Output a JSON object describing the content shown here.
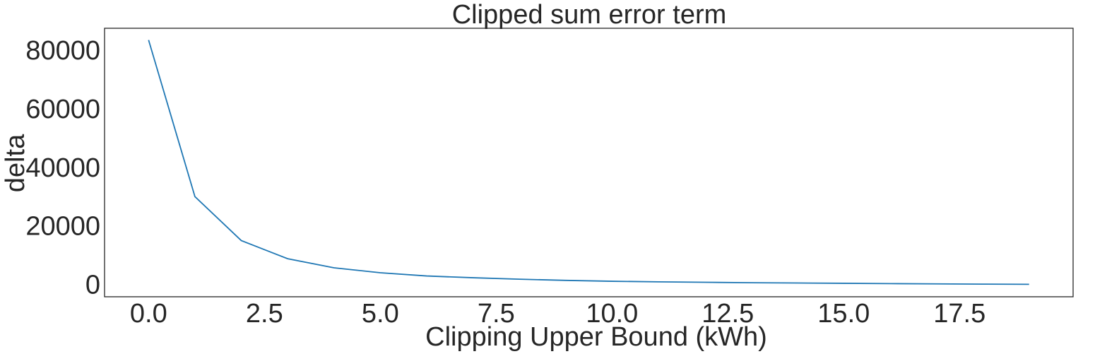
{
  "chart_data": {
    "type": "line",
    "title": "Clipped sum error term",
    "xlabel": "Clipping Upper Bound (kWh)",
    "ylabel": "delta",
    "xlim": [
      -0.95,
      19.95
    ],
    "ylim": [
      -4200,
      87500
    ],
    "grid": false,
    "x_ticks": [
      0.0,
      2.5,
      5.0,
      7.5,
      10.0,
      12.5,
      15.0,
      17.5
    ],
    "x_tick_labels": [
      "0.0",
      "2.5",
      "5.0",
      "7.5",
      "10.0",
      "12.5",
      "15.0",
      "17.5"
    ],
    "y_ticks": [
      0,
      20000,
      40000,
      60000,
      80000
    ],
    "y_tick_labels": [
      "0",
      "20000",
      "40000",
      "60000",
      "80000"
    ],
    "series": [
      {
        "color": "#1f77b4",
        "x": [
          0,
          1,
          2,
          3,
          4,
          5,
          6,
          7,
          8,
          9,
          10,
          11,
          12,
          13,
          14,
          15,
          16,
          17,
          18,
          19
        ],
        "values": [
          83500,
          30000,
          15000,
          8800,
          5700,
          4000,
          2900,
          2300,
          1800,
          1400,
          1100,
          900,
          750,
          600,
          500,
          400,
          300,
          200,
          120,
          50
        ]
      }
    ]
  }
}
